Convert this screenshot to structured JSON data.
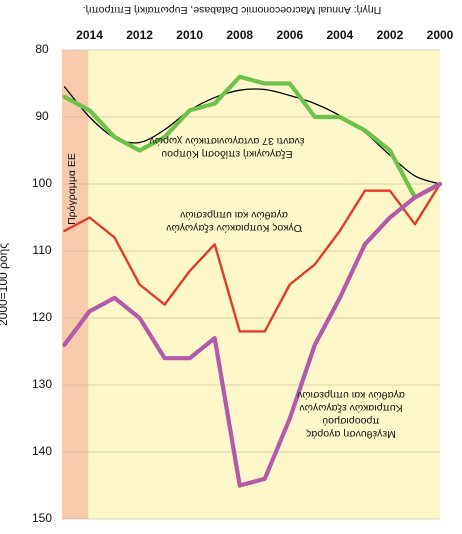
{
  "chart_data": {
    "type": "line",
    "orientation": "rotated-180",
    "source": "Πηγή: Annual Macroeconomic Database, Ευρωπαϊκή Επιτροπή.",
    "ylabel": "2000=100 ροής",
    "x_ticks": [
      "2000",
      "2002",
      "2004",
      "2006",
      "2008",
      "2010",
      "2012",
      "2014"
    ],
    "y_ticks": [
      "80",
      "90",
      "100",
      "110",
      "120",
      "130",
      "140",
      "150"
    ],
    "xlim": [
      2000,
      2015.1
    ],
    "ylim": [
      80,
      150
    ],
    "x": [
      2000,
      2001,
      2002,
      2003,
      2004,
      2005,
      2006,
      2007,
      2008,
      2009,
      2010,
      2011,
      2012,
      2013,
      2014,
      2015
    ],
    "shaded_region": {
      "label": "Πρόγραμμα ΕΕ",
      "x_start": 2014.05,
      "x_end": 2015.1,
      "color": "#f8cbad"
    },
    "plot_background": "#fdf7c9",
    "series": [
      {
        "name": "Εξαγωγική επίδοση Κύπρου",
        "subtitle": "έναντι 37 ανταγωνιστικών χωρών",
        "color": "#6cc24a",
        "values": [
          100,
          102,
          95,
          92,
          90,
          90,
          85,
          85,
          84,
          88,
          89,
          93,
          95,
          93,
          89,
          87
        ]
      },
      {
        "name": "Όγκος Κυπριακών εξαγωγών",
        "subtitle": "αγαθών και υπηρεσιών",
        "color": "#e23b2a",
        "values": [
          100,
          106,
          101,
          101,
          107,
          112,
          115,
          122,
          122,
          109,
          113,
          118,
          115,
          108,
          105,
          107
        ]
      },
      {
        "name": "Μεγέθυνση αγοράς",
        "subtitle": "προορισμού Κυπριακών εξαγωγών αγαθών και υπηρεσιών",
        "color": "#b35aab",
        "values": [
          100,
          102,
          105,
          109,
          117,
          124,
          135,
          144,
          145,
          123,
          126,
          126,
          120,
          117,
          119,
          124
        ]
      },
      {
        "name": "trend",
        "color": "#000000",
        "values": [
          100,
          98.8,
          95.7,
          92.3,
          89.8,
          88.0,
          86.8,
          85.9,
          86.0,
          87.1,
          89.0,
          91.9,
          93.8,
          93.1,
          90.0,
          85.5
        ]
      }
    ],
    "annotations": {
      "green_line1": "Εξαγωγική επίδοση Κύπρου",
      "green_line2": "έναντι 37 ανταγωνιστικών χωρών",
      "red_line1": "Όγκος Κυπριακών εξαγωγών",
      "red_line2": "αγαθών και υπηρεσιών",
      "purple_line1": "Μεγέθυνση αγοράς",
      "purple_line2": "προορισμού",
      "purple_line3": "Κυπριακών εξαγωγών",
      "purple_line4": "αγαθών και υπηρεσιών",
      "shaded": "Πρόγραμμα ΕΕ"
    }
  }
}
